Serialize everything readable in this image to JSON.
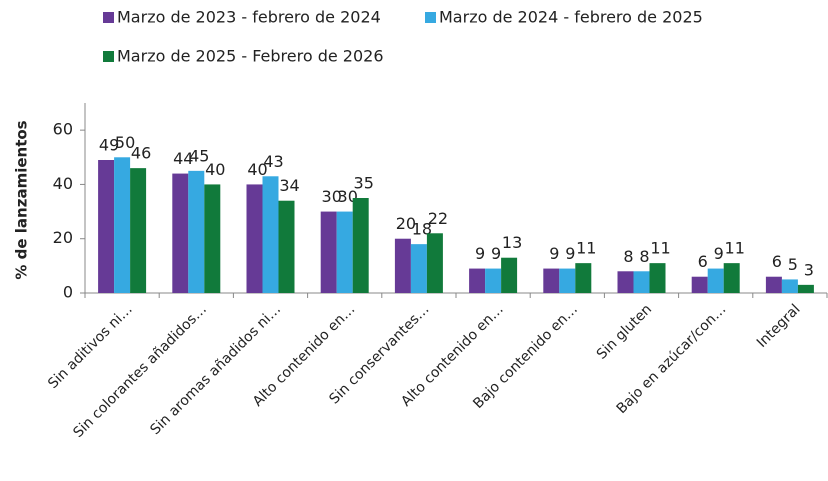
{
  "chart_data": {
    "type": "bar",
    "ylabel": "% de lanzamientos",
    "categories": [
      "Sin aditivos ni…",
      "Sin colorantes añadidos…",
      "Sin aromas añadidos ni…",
      "Alto contenido en…",
      "Sin conservantes…",
      "Alto contenido en…",
      "Bajo contenido en…",
      "Sin gluten",
      "Bajo en azúcar/con…",
      "Integral"
    ],
    "series": [
      {
        "name": "Marzo de 2023 - febrero de 2024",
        "color": "#663a96",
        "values": [
          49,
          44,
          40,
          30,
          20,
          9,
          9,
          8,
          6,
          6
        ]
      },
      {
        "name": "Marzo de 2024 - febrero de 2025",
        "color": "#36a9e1",
        "values": [
          50,
          45,
          43,
          30,
          18,
          9,
          9,
          8,
          9,
          5
        ]
      },
      {
        "name": "Marzo de 2025 - Febrero de 2026",
        "color": "#117a3b",
        "values": [
          46,
          40,
          34,
          35,
          22,
          13,
          11,
          11,
          11,
          3
        ]
      }
    ],
    "ylim": [
      0,
      70
    ],
    "yticks": [
      0,
      20,
      40,
      60
    ],
    "grid": false,
    "legend": "top"
  }
}
